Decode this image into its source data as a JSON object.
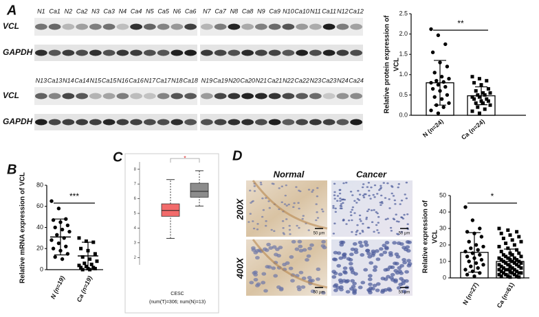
{
  "panel_labels": [
    "A",
    "B",
    "C",
    "D"
  ],
  "blots": [
    {
      "lanes": [
        "N1",
        "Ca1",
        "N2",
        "Ca2",
        "N3",
        "Ca3",
        "N4",
        "Ca4",
        "N5",
        "Ca5",
        "N6",
        "Ca6"
      ],
      "rows": [
        "VCL",
        "GAPDH"
      ]
    },
    {
      "lanes": [
        "N7",
        "Ca7",
        "N8",
        "Ca8",
        "N9",
        "Ca9",
        "N10",
        "Ca10",
        "N11",
        "Ca11",
        "N12",
        "Ca12"
      ]
    },
    {
      "lanes": [
        "N13",
        "Ca13",
        "N14",
        "Ca14",
        "N15",
        "Ca15",
        "N16",
        "Ca16",
        "N17",
        "Ca17",
        "N18",
        "Ca18"
      ],
      "rows": [
        "VCL",
        "GAPDH"
      ]
    },
    {
      "lanes": [
        "N19",
        "Ca19",
        "N20",
        "Ca20",
        "N21",
        "Ca21",
        "N22",
        "Ca22",
        "N23",
        "Ca23",
        "N24",
        "Ca24"
      ]
    }
  ],
  "ihc": {
    "columns": [
      "Normal",
      "Cancer"
    ],
    "rows": [
      "200X",
      "400X"
    ],
    "scale_bars": [
      "50 μm",
      "50 μm",
      "50 μm",
      "50 μm"
    ]
  },
  "chart_data": [
    {
      "type": "bar",
      "ylabel": [
        "Relative protein expression of",
        "VCL"
      ],
      "categories": [
        "N (n=24)",
        "Ca (n=24)"
      ],
      "values": [
        0.8,
        0.48
      ],
      "errors": [
        0.55,
        0.22
      ],
      "markers": [
        "circle",
        "square"
      ],
      "color": "#ffffff",
      "points": [
        [
          2.12,
          1.97,
          1.75,
          1.55,
          1.3,
          1.2,
          1.05,
          0.95,
          0.9,
          0.85,
          0.82,
          0.8,
          0.75,
          0.7,
          0.65,
          0.6,
          0.5,
          0.45,
          0.4,
          0.3,
          0.25,
          0.2,
          0.12,
          0.05
        ],
        [
          0.95,
          0.9,
          0.85,
          0.8,
          0.75,
          0.65,
          0.6,
          0.55,
          0.55,
          0.5,
          0.5,
          0.45,
          0.45,
          0.4,
          0.4,
          0.35,
          0.35,
          0.3,
          0.3,
          0.25,
          0.2,
          0.15,
          0.1,
          0.05
        ]
      ],
      "ylim": [
        0,
        2.5
      ],
      "yticks": [
        {
          "value": 0,
          "label": "0.0"
        },
        {
          "value": 0.5,
          "label": "0.5"
        },
        {
          "value": 1,
          "label": "1.0"
        },
        {
          "value": 1.5,
          "label": "1.5"
        },
        {
          "value": 2,
          "label": "2.0"
        },
        {
          "value": 2.5,
          "label": "2.5"
        }
      ],
      "significance": "**"
    },
    {
      "type": "strip",
      "ylabel": [
        "Relative mRNA expression of VCL"
      ],
      "categories": [
        "N (n=19)",
        "Ca (n=19)"
      ],
      "values": [
        31,
        13
      ],
      "errors": [
        17,
        13
      ],
      "markers": [
        "circle",
        "square"
      ],
      "points": [
        [
          65,
          58,
          48,
          47,
          45,
          42,
          40,
          38,
          36,
          33,
          30,
          28,
          25,
          22,
          20,
          18,
          15,
          12,
          10
        ],
        [
          30,
          27,
          26,
          20,
          18,
          15,
          12,
          10,
          8,
          6,
          5,
          4,
          3,
          2,
          2,
          1,
          1,
          0,
          0
        ]
      ],
      "ylim": [
        0,
        80
      ],
      "yticks": [
        0,
        20,
        40,
        60,
        80
      ],
      "significance": "***"
    },
    {
      "type": "box",
      "xlabel": "CESC",
      "subtitle": "(num(T)=306; num(N)=13)",
      "boxes": [
        {
          "color": "#f26b6b",
          "whislo": 3.3,
          "q1": 4.8,
          "med": 5.2,
          "q3": 5.65,
          "whishi": 7.3
        },
        {
          "color": "#8c8c8c",
          "whislo": 5.5,
          "q1": 6.1,
          "med": 6.5,
          "q3": 7.05,
          "whishi": 7.9
        }
      ],
      "ylim": [
        1.5,
        8.5
      ],
      "yticks": [
        2,
        3,
        4,
        5,
        6,
        7,
        8
      ],
      "significance": "*"
    },
    {
      "type": "bar",
      "ylabel": [
        "Relative  expression of",
        "VCL"
      ],
      "categories": [
        "N (n=27)",
        "Ca (n=61)"
      ],
      "values": [
        15.5,
        10
      ],
      "errors": [
        12,
        7.5
      ],
      "markers": [
        "circle",
        "square"
      ],
      "color": "#ffffff",
      "points": [
        [
          43,
          35,
          30,
          28,
          27,
          25,
          22,
          20,
          19,
          18,
          17,
          16,
          15,
          14,
          13,
          12,
          11,
          10,
          9,
          8,
          7,
          6,
          5,
          4,
          3,
          2,
          1
        ],
        [
          30,
          29,
          28,
          27,
          26,
          25,
          24,
          23,
          22,
          21,
          20,
          19,
          18,
          17,
          16,
          15,
          15,
          14,
          14,
          13,
          13,
          12,
          12,
          12,
          11,
          11,
          11,
          10,
          10,
          10,
          9,
          9,
          9,
          8,
          8,
          8,
          7,
          7,
          7,
          6,
          6,
          6,
          5,
          5,
          5,
          5,
          4,
          4,
          4,
          3,
          3,
          3,
          3,
          2,
          2,
          2,
          1,
          1,
          1,
          0.5,
          0.5
        ]
      ],
      "ylim": [
        0,
        50
      ],
      "yticks": [
        0,
        10,
        20,
        30,
        40,
        50
      ],
      "significance": "*"
    }
  ]
}
